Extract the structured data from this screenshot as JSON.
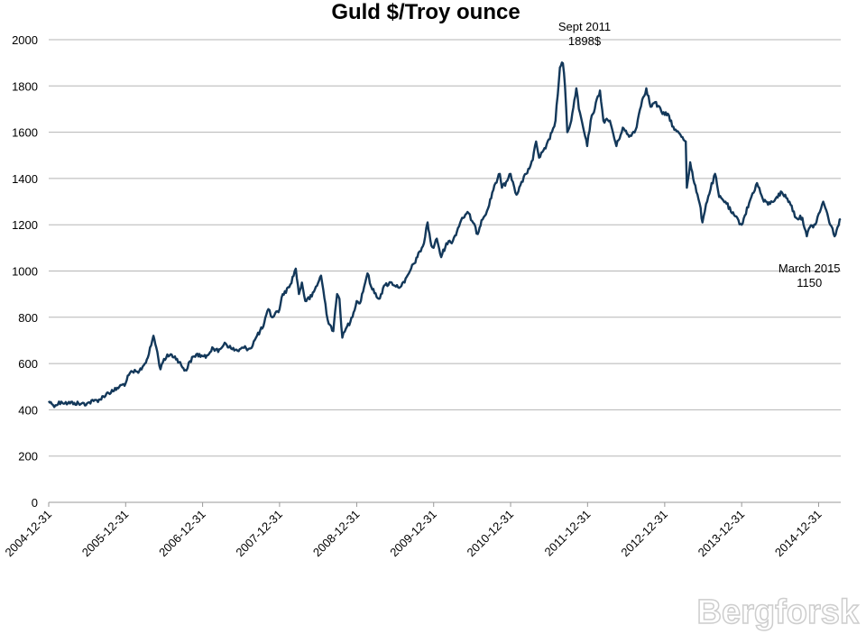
{
  "chart_data": {
    "type": "line",
    "title": "Guld $/Troy ounce",
    "ylim": [
      0,
      2000
    ],
    "yticks": [
      0,
      200,
      400,
      600,
      800,
      1000,
      1200,
      1400,
      1600,
      1800,
      2000
    ],
    "xlim": [
      "2004-12-31",
      "2015-04-15"
    ],
    "xticks": [
      "2004-12-31",
      "2005-12-31",
      "2006-12-31",
      "2007-12-31",
      "2008-12-31",
      "2009-12-31",
      "2010-12-31",
      "2011-12-31",
      "2012-12-31",
      "2013-12-31",
      "2014-12-31"
    ],
    "grid": true,
    "legend": "none",
    "series": [
      {
        "color": "#13385a",
        "points": [
          [
            "2004-12-31",
            438
          ],
          [
            "2005-01-15",
            425
          ],
          [
            "2005-02-01",
            420
          ],
          [
            "2005-03-01",
            435
          ],
          [
            "2005-04-01",
            428
          ],
          [
            "2005-05-01",
            430
          ],
          [
            "2005-06-01",
            425
          ],
          [
            "2005-07-01",
            428
          ],
          [
            "2005-08-01",
            438
          ],
          [
            "2005-09-01",
            445
          ],
          [
            "2005-10-01",
            470
          ],
          [
            "2005-11-01",
            480
          ],
          [
            "2005-12-01",
            500
          ],
          [
            "2005-12-31",
            515
          ],
          [
            "2006-01-15",
            550
          ],
          [
            "2006-02-01",
            565
          ],
          [
            "2006-03-01",
            560
          ],
          [
            "2006-04-01",
            600
          ],
          [
            "2006-04-20",
            640
          ],
          [
            "2006-05-12",
            720
          ],
          [
            "2006-05-25",
            670
          ],
          [
            "2006-06-14",
            575
          ],
          [
            "2006-07-01",
            620
          ],
          [
            "2006-08-01",
            640
          ],
          [
            "2006-09-01",
            620
          ],
          [
            "2006-10-01",
            580
          ],
          [
            "2006-10-15",
            570
          ],
          [
            "2006-11-01",
            610
          ],
          [
            "2006-12-01",
            640
          ],
          [
            "2006-12-31",
            632
          ],
          [
            "2007-01-15",
            625
          ],
          [
            "2007-02-15",
            670
          ],
          [
            "2007-03-15",
            650
          ],
          [
            "2007-04-15",
            690
          ],
          [
            "2007-05-15",
            665
          ],
          [
            "2007-06-15",
            655
          ],
          [
            "2007-07-15",
            668
          ],
          [
            "2007-08-15",
            665
          ],
          [
            "2007-09-15",
            720
          ],
          [
            "2007-10-15",
            760
          ],
          [
            "2007-11-08",
            835
          ],
          [
            "2007-11-25",
            800
          ],
          [
            "2007-12-31",
            835
          ],
          [
            "2008-01-15",
            900
          ],
          [
            "2008-02-15",
            930
          ],
          [
            "2008-03-17",
            1010
          ],
          [
            "2008-04-01",
            900
          ],
          [
            "2008-04-15",
            950
          ],
          [
            "2008-05-01",
            870
          ],
          [
            "2008-06-01",
            890
          ],
          [
            "2008-07-15",
            980
          ],
          [
            "2008-08-15",
            790
          ],
          [
            "2008-09-11",
            740
          ],
          [
            "2008-09-29",
            900
          ],
          [
            "2008-10-10",
            880
          ],
          [
            "2008-10-24",
            712
          ],
          [
            "2008-11-15",
            760
          ],
          [
            "2008-12-01",
            780
          ],
          [
            "2008-12-31",
            870
          ],
          [
            "2009-01-15",
            860
          ],
          [
            "2009-02-20",
            990
          ],
          [
            "2009-03-15",
            920
          ],
          [
            "2009-04-15",
            880
          ],
          [
            "2009-05-15",
            940
          ],
          [
            "2009-06-15",
            950
          ],
          [
            "2009-07-15",
            930
          ],
          [
            "2009-08-15",
            950
          ],
          [
            "2009-09-15",
            1010
          ],
          [
            "2009-10-15",
            1060
          ],
          [
            "2009-11-15",
            1120
          ],
          [
            "2009-12-02",
            1210
          ],
          [
            "2009-12-20",
            1110
          ],
          [
            "2009-12-31",
            1100
          ],
          [
            "2010-01-15",
            1140
          ],
          [
            "2010-02-05",
            1060
          ],
          [
            "2010-03-01",
            1120
          ],
          [
            "2010-04-01",
            1130
          ],
          [
            "2010-05-15",
            1230
          ],
          [
            "2010-06-15",
            1250
          ],
          [
            "2010-07-28",
            1160
          ],
          [
            "2010-08-15",
            1220
          ],
          [
            "2010-09-15",
            1270
          ],
          [
            "2010-10-15",
            1370
          ],
          [
            "2010-11-10",
            1420
          ],
          [
            "2010-11-20",
            1360
          ],
          [
            "2010-12-15",
            1390
          ],
          [
            "2010-12-31",
            1420
          ],
          [
            "2011-01-28",
            1330
          ],
          [
            "2011-02-15",
            1370
          ],
          [
            "2011-03-15",
            1420
          ],
          [
            "2011-04-15",
            1480
          ],
          [
            "2011-05-01",
            1560
          ],
          [
            "2011-05-15",
            1490
          ],
          [
            "2011-06-15",
            1530
          ],
          [
            "2011-07-15",
            1600
          ],
          [
            "2011-08-01",
            1650
          ],
          [
            "2011-08-22",
            1880
          ],
          [
            "2011-09-05",
            1898
          ],
          [
            "2011-09-15",
            1800
          ],
          [
            "2011-09-26",
            1600
          ],
          [
            "2011-10-15",
            1650
          ],
          [
            "2011-11-08",
            1790
          ],
          [
            "2011-11-20",
            1700
          ],
          [
            "2011-12-15",
            1600
          ],
          [
            "2011-12-29",
            1540
          ],
          [
            "2012-01-15",
            1650
          ],
          [
            "2012-02-28",
            1780
          ],
          [
            "2012-03-15",
            1650
          ],
          [
            "2012-04-15",
            1650
          ],
          [
            "2012-05-16",
            1540
          ],
          [
            "2012-06-15",
            1620
          ],
          [
            "2012-07-15",
            1580
          ],
          [
            "2012-08-15",
            1610
          ],
          [
            "2012-09-15",
            1740
          ],
          [
            "2012-10-05",
            1790
          ],
          [
            "2012-10-25",
            1710
          ],
          [
            "2012-11-15",
            1730
          ],
          [
            "2012-12-15",
            1690
          ],
          [
            "2012-12-31",
            1675
          ],
          [
            "2013-01-15",
            1680
          ],
          [
            "2013-02-15",
            1610
          ],
          [
            "2013-03-15",
            1590
          ],
          [
            "2013-04-10",
            1560
          ],
          [
            "2013-04-15",
            1360
          ],
          [
            "2013-05-01",
            1470
          ],
          [
            "2013-05-20",
            1380
          ],
          [
            "2013-06-15",
            1290
          ],
          [
            "2013-06-28",
            1210
          ],
          [
            "2013-07-15",
            1290
          ],
          [
            "2013-08-27",
            1420
          ],
          [
            "2013-09-15",
            1320
          ],
          [
            "2013-10-15",
            1300
          ],
          [
            "2013-11-15",
            1250
          ],
          [
            "2013-12-31",
            1200
          ],
          [
            "2014-01-15",
            1240
          ],
          [
            "2014-02-15",
            1320
          ],
          [
            "2014-03-14",
            1380
          ],
          [
            "2014-04-15",
            1300
          ],
          [
            "2014-05-15",
            1290
          ],
          [
            "2014-06-15",
            1320
          ],
          [
            "2014-07-10",
            1340
          ],
          [
            "2014-08-15",
            1300
          ],
          [
            "2014-09-15",
            1230
          ],
          [
            "2014-10-15",
            1230
          ],
          [
            "2014-11-05",
            1150
          ],
          [
            "2014-11-20",
            1190
          ],
          [
            "2014-12-15",
            1200
          ],
          [
            "2015-01-22",
            1300
          ],
          [
            "2015-02-15",
            1230
          ],
          [
            "2015-03-17",
            1150
          ],
          [
            "2015-03-31",
            1190
          ],
          [
            "2015-04-15",
            1225
          ]
        ]
      }
    ],
    "annotations": [
      {
        "lines": [
          "Sept 2011",
          "1898$"
        ],
        "date": "2011-09-05",
        "value": 1898
      },
      {
        "lines": [
          "March 2015",
          "1150"
        ],
        "date": "2015-03-17",
        "value": 1150
      }
    ]
  },
  "watermark": "Bergforsk"
}
